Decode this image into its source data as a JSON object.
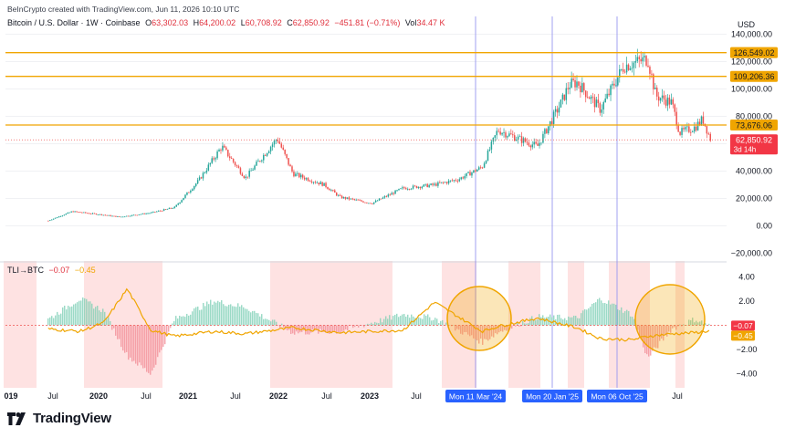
{
  "header": {
    "credit": "BeInCrypto created with TradingView.com, Jun 11, 2026 10:10 UTC",
    "symbol": "Bitcoin / U.S. Dollar · 1W · Coinbase",
    "open_label": "O",
    "open": "63,302.03",
    "high_label": "H",
    "high": "64,200.02",
    "low_label": "L",
    "low": "60,708.92",
    "close_label": "C",
    "close": "62,850.92",
    "change": "−451.81 (−0.71%)",
    "vol_label": "Vol",
    "vol": "34.47 K"
  },
  "price_axis": {
    "currency": "USD",
    "ticks": [
      "140,000.00",
      "120,000.00",
      "100,000.00",
      "80,000.00",
      "60,000.00",
      "40,000.00",
      "20,000.00",
      "0.00",
      "−20,000.00"
    ]
  },
  "levels": [
    "126,549.02",
    "109,206.36",
    "73,676.06"
  ],
  "last_price": {
    "value": "62,850.92",
    "countdown": "3d 14h"
  },
  "indicator": {
    "name": "TLI→BTC",
    "value1": "−0.07",
    "value2": "−0.45",
    "axis_ticks": [
      "4.00",
      "2.00",
      "0.00",
      "−2.00",
      "−4.00"
    ]
  },
  "time_axis": {
    "ticks": [
      "019",
      "Jul",
      "2020",
      "Jul",
      "2021",
      "Jul",
      "2022",
      "Jul",
      "2023",
      "Jul",
      "Jul"
    ],
    "highlights": [
      "Mon 11 Mar '24",
      "Mon 20 Jan '25",
      "Mon 06 Oct '25"
    ]
  },
  "brand": "TradingView",
  "colors": {
    "up": "#26a69a",
    "down": "#ef5350",
    "level": "#f0a500",
    "marker": "#8c8cf0",
    "shade": "#fdd8d8",
    "tli_pos": "#7ccfb4",
    "tli_neg": "#f28b95"
  },
  "chart_data": [
    {
      "type": "candlestick",
      "title": "Bitcoin / U.S. Dollar · 1W · Coinbase",
      "ylabel": "USD",
      "ylim": [
        -25000,
        145000
      ],
      "x": [
        "2019-06",
        "2019-09",
        "2020-01",
        "2020-03",
        "2020-07",
        "2020-10",
        "2021-01",
        "2021-04",
        "2021-07",
        "2021-11",
        "2022-01",
        "2022-05",
        "2022-07",
        "2022-11",
        "2023-03",
        "2023-07",
        "2023-10",
        "2024-01",
        "2024-03",
        "2024-08",
        "2024-11",
        "2024-12",
        "2025-01",
        "2025-04",
        "2025-07",
        "2025-10",
        "2025-11",
        "2026-01",
        "2026-02",
        "2026-04",
        "2026-05",
        "2026-06"
      ],
      "close": [
        3800,
        10500,
        8000,
        6500,
        9500,
        13500,
        33000,
        58000,
        35000,
        64000,
        38000,
        30000,
        21000,
        16500,
        27500,
        30000,
        34000,
        43000,
        70000,
        58000,
        90000,
        103000,
        105000,
        85000,
        117000,
        122000,
        95000,
        90000,
        68000,
        72000,
        78000,
        62850.92
      ],
      "levels": [
        126549.02,
        109206.36,
        73676.06
      ],
      "last": 62850.92,
      "grid": true
    },
    {
      "type": "area",
      "title": "TLI→BTC",
      "ylim": [
        -5,
        5
      ],
      "x": [
        "2019-06",
        "2019-10",
        "2020-01",
        "2020-04",
        "2020-07",
        "2020-10",
        "2021-03",
        "2021-07",
        "2022-01",
        "2022-07",
        "2023-03",
        "2023-07",
        "2024-01",
        "2024-03",
        "2024-08",
        "2025-01",
        "2025-04",
        "2025-08",
        "2025-10",
        "2026-01",
        "2026-04",
        "2026-06"
      ],
      "histogram": [
        0.5,
        2.2,
        1.2,
        -2.5,
        -4.0,
        0.5,
        2.0,
        1.5,
        -0.6,
        -0.5,
        0.9,
        0.6,
        -1.4,
        -0.6,
        0.7,
        0.6,
        2.2,
        0.9,
        -2.7,
        -0.3,
        0.5,
        -0.07
      ],
      "line": [
        -0.3,
        -0.5,
        0.2,
        3.0,
        -0.4,
        -0.9,
        -0.5,
        -0.7,
        -0.2,
        -0.6,
        -0.4,
        1.9,
        -0.5,
        -0.1,
        0.6,
        -0.2,
        -1.1,
        -1.2,
        -0.9,
        -0.7,
        -0.6,
        -0.45
      ]
    }
  ]
}
